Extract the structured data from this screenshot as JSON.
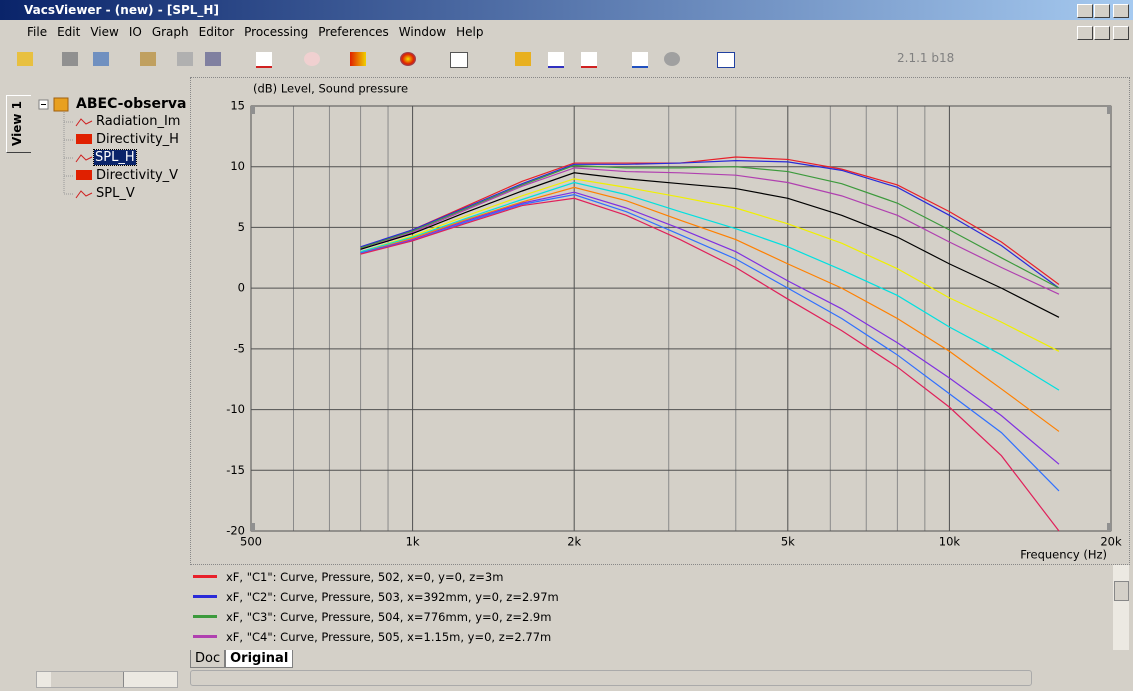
{
  "window": {
    "title": "VacsViewer - (new) - [SPL_H]",
    "version": "2.1.1 b18"
  },
  "menu": [
    "File",
    "Edit",
    "View",
    "IO",
    "Graph",
    "Editor",
    "Processing",
    "Preferences",
    "Window",
    "Help"
  ],
  "side_tab": "View 1",
  "tree": {
    "root": "ABEC-observa",
    "items": [
      "Radiation_Im",
      "Directivity_H",
      "SPL_H",
      "Directivity_V",
      "SPL_V"
    ]
  },
  "tabs": [
    "Doc",
    "Original"
  ],
  "chart_data": {
    "type": "line",
    "ylabel": "(dB)  Level, Sound pressure",
    "xlabel": "Frequency  (Hz)",
    "log_x": true,
    "grid": true,
    "xlim": [
      500,
      20000
    ],
    "xticks": [
      500,
      {
        "value": 1000,
        "label": "1k"
      },
      {
        "value": 2000,
        "label": "2k"
      },
      {
        "value": 5000,
        "label": "5k"
      },
      {
        "value": 10000,
        "label": "10k"
      },
      {
        "value": 20000,
        "label": "20k"
      }
    ],
    "xminorticks": [
      600,
      700,
      800,
      900,
      3000,
      4000,
      6000,
      7000,
      8000,
      9000
    ],
    "ylim": [
      -20,
      15
    ],
    "yticks": [
      -20,
      -15,
      -10,
      -5,
      0,
      5,
      10,
      15
    ],
    "x": [
      800,
      1000,
      1250,
      1600,
      2000,
      2500,
      3150,
      4000,
      5000,
      6300,
      8000,
      10000,
      12500,
      16000
    ],
    "series": [
      {
        "name": "xF, \"C1\": Curve, Pressure, 502, x=0, y=0, z=3m",
        "color": "#e8202a",
        "values": [
          3.3,
          4.8,
          6.7,
          8.8,
          10.3,
          10.3,
          10.3,
          10.8,
          10.6,
          9.8,
          8.5,
          6.3,
          3.8,
          0.3
        ]
      },
      {
        "name": "xF, \"C2\": Curve, Pressure, 503, x=392mm, y=0, z=2.97m",
        "color": "#2a2ad8",
        "values": [
          3.4,
          4.8,
          6.6,
          8.6,
          10.2,
          10.2,
          10.3,
          10.5,
          10.4,
          9.7,
          8.3,
          6.0,
          3.5,
          0
        ]
      },
      {
        "name": "xF, \"C3\": Curve, Pressure, 504, x=776mm, y=0, z=2.9m",
        "color": "#3c9a3c",
        "values": [
          3.3,
          4.7,
          6.5,
          8.5,
          10.1,
          9.9,
          9.9,
          10.0,
          9.6,
          8.6,
          7.0,
          4.8,
          2.5,
          0
        ]
      },
      {
        "name": "xF, \"C4\": Curve, Pressure, 505, x=1.15m, y=0, z=2.77m",
        "color": "#b040b0",
        "values": [
          3.2,
          4.6,
          6.4,
          8.4,
          9.9,
          9.6,
          9.5,
          9.3,
          8.7,
          7.6,
          6.0,
          3.8,
          1.7,
          -0.5
        ]
      },
      {
        "color": "#000000",
        "values": [
          3.2,
          4.5,
          6.2,
          8.0,
          9.5,
          9.0,
          8.6,
          8.2,
          7.4,
          6.0,
          4.2,
          2.0,
          0,
          -2.4
        ]
      },
      {
        "color": "#f0f000",
        "values": [
          3.0,
          4.3,
          5.9,
          7.6,
          9.0,
          8.3,
          7.5,
          6.6,
          5.3,
          3.7,
          1.6,
          -0.8,
          -2.8,
          -5.2
        ]
      },
      {
        "color": "#00e0e0",
        "values": [
          3.0,
          4.2,
          5.7,
          7.3,
          8.7,
          7.7,
          6.3,
          4.9,
          3.4,
          1.5,
          -0.6,
          -3.2,
          -5.5,
          -8.4
        ]
      },
      {
        "color": "#ff8000",
        "values": [
          2.9,
          4.1,
          5.6,
          7.1,
          8.3,
          7.2,
          5.6,
          4.0,
          2.0,
          0,
          -2.5,
          -5.2,
          -8.3,
          -11.8
        ]
      },
      {
        "color": "#8030e0",
        "values": [
          2.9,
          4.0,
          5.5,
          7.0,
          7.9,
          6.6,
          4.9,
          3.0,
          0.6,
          -1.7,
          -4.5,
          -7.4,
          -10.5,
          -14.5
        ]
      },
      {
        "color": "#3070ff",
        "values": [
          2.9,
          3.9,
          5.4,
          6.9,
          7.7,
          6.3,
          4.4,
          2.4,
          0,
          -2.5,
          -5.5,
          -8.7,
          -11.9,
          -16.7
        ]
      },
      {
        "color": "#e0205a",
        "values": [
          2.8,
          3.9,
          5.3,
          6.8,
          7.4,
          6.0,
          4.0,
          1.7,
          -0.9,
          -3.5,
          -6.5,
          -9.8,
          -13.8,
          -20
        ]
      }
    ]
  }
}
